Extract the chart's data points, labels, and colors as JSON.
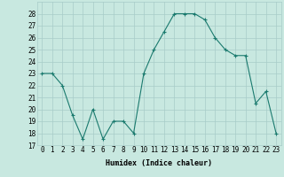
{
  "x": [
    0,
    1,
    2,
    3,
    4,
    5,
    6,
    7,
    8,
    9,
    10,
    11,
    12,
    13,
    14,
    15,
    16,
    17,
    18,
    19,
    20,
    21,
    22,
    23
  ],
  "y": [
    23,
    23,
    22,
    19.5,
    17.5,
    20,
    17.5,
    19,
    19,
    18,
    23,
    25,
    26.5,
    28,
    28,
    28,
    27.5,
    26,
    25,
    24.5,
    24.5,
    20.5,
    21.5,
    18
  ],
  "line_color": "#1a7a6e",
  "marker": "+",
  "bg_color": "#c8e8e0",
  "grid_color": "#a8ccc8",
  "xlabel": "Humidex (Indice chaleur)",
  "ylim": [
    17,
    29
  ],
  "yticks": [
    17,
    18,
    19,
    20,
    21,
    22,
    23,
    24,
    25,
    26,
    27,
    28
  ],
  "xticks": [
    0,
    1,
    2,
    3,
    4,
    5,
    6,
    7,
    8,
    9,
    10,
    11,
    12,
    13,
    14,
    15,
    16,
    17,
    18,
    19,
    20,
    21,
    22,
    23
  ],
  "xlabel_fontsize": 6.0,
  "tick_fontsize": 5.5,
  "marker_size": 3.0,
  "line_width": 0.8
}
